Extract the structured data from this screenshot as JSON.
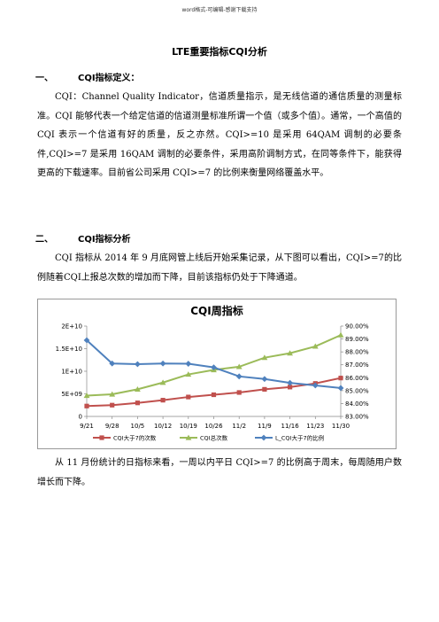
{
  "header": "word格式-可编辑-感谢下载支持",
  "title": "LTE重要指标CQI分析",
  "sections": [
    {
      "num": "一、",
      "label": "CQI指标定义："
    },
    {
      "num": "二、",
      "label": "CQI指标分析"
    }
  ],
  "paragraphs": {
    "definition": "CQI：Channel Quality Indicator，信道质量指示，是无线信道的通信质量的测量标准。CQI 能够代表一个给定信道的信道测量标准所谓一个值（或多个值）。通常，一个高值的 CQI 表示一个信道有好的质量，反之亦然。CQI>=10 是采用 64QAM 调制的必要条件,CQI>=7 是采用 16QAM 调制的必要条件，采用高阶调制方式，在同等条件下，能获得更高的下载速率。目前省公司采用 CQI>=7 的比例来衡量网络覆盖水平。",
    "analysis": "CQI 指标从 2014 年 9 月底网管上线后开始采集记录，从下图可以看出，CQI>=7的比例随着CQI上报总次数的增加而下降，目前该指标仍处于下降通道。",
    "conclusion": "从 11 月份统计的日指标来看，一周以内平日 CQI>=7 的比例高于周末，每周随用户数增长而下降。"
  },
  "chart_data": {
    "type": "line",
    "title": "CQI周指标",
    "categories": [
      "9/21",
      "9/28",
      "10/5",
      "10/12",
      "10/19",
      "10/26",
      "11/2",
      "11/9",
      "11/16",
      "11/23",
      "11/30"
    ],
    "y_left_ticks": [
      "0",
      "5E+09",
      "1E+10",
      "1.5E+10",
      "2E+10"
    ],
    "y_left_range": [
      0,
      20000000000
    ],
    "y_right_ticks": [
      "83.00%",
      "84.00%",
      "85.00%",
      "86.00%",
      "87.00%",
      "88.00%",
      "89.00%",
      "90.00%"
    ],
    "y_right_range": [
      83,
      90
    ],
    "legend_position": "bottom",
    "series": [
      {
        "name": "CQI大于7的次数",
        "axis": "left",
        "color": "#c0504d",
        "marker": "square",
        "values": [
          2300000000,
          2500000000,
          3000000000,
          3600000000,
          4300000000,
          4800000000,
          5300000000,
          6000000000,
          6500000000,
          7300000000,
          8500000000
        ]
      },
      {
        "name": "CQI总次数",
        "axis": "left",
        "color": "#9bbb59",
        "marker": "triangle",
        "values": [
          4600000000,
          4900000000,
          6000000000,
          7500000000,
          9300000000,
          10300000000,
          11000000000,
          13000000000,
          14000000000,
          15500000000,
          18000000000
        ]
      },
      {
        "name": "L_CQI大于7的比例",
        "axis": "right",
        "color": "#4f81bd",
        "marker": "diamond",
        "values": [
          88.9,
          87.1,
          87.05,
          87.1,
          87.08,
          86.8,
          86.1,
          85.9,
          85.6,
          85.4,
          85.2
        ]
      }
    ]
  }
}
